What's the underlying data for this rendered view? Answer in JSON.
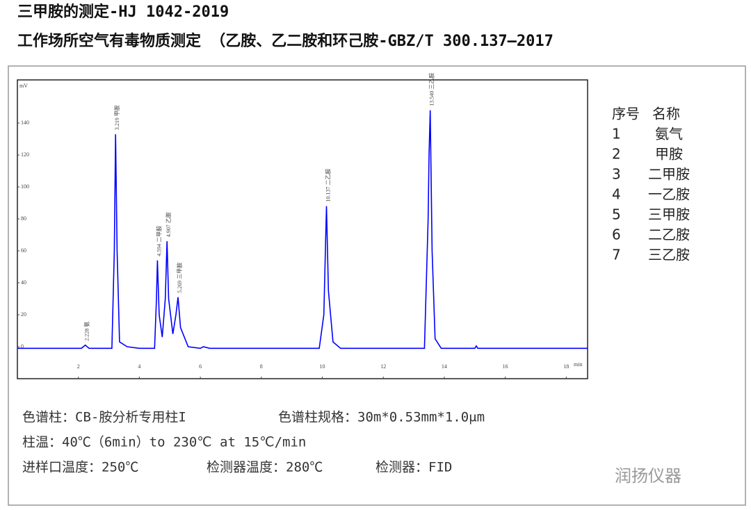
{
  "header": {
    "title": "三甲胺的测定-HJ 1042-2019",
    "subtitle": "工作场所空气有毒物质测定 （乙胺、乙二胺和环己胺-GBZ/T 300.137—2017"
  },
  "chart_data": {
    "type": "line",
    "y_unit": "mV",
    "x_unit": "min",
    "color": "#0000ff",
    "x": [
      0,
      2.1,
      2.228,
      2.35,
      3.1,
      3.18,
      3.219,
      3.27,
      3.35,
      3.6,
      4.0,
      4.5,
      4.56,
      4.594,
      4.65,
      4.75,
      4.85,
      4.907,
      4.96,
      5.1,
      5.2,
      5.269,
      5.35,
      5.6,
      6.0,
      6.1,
      6.3,
      9.9,
      10.05,
      10.137,
      10.2,
      10.35,
      10.6,
      11.1,
      13.35,
      13.47,
      13.5,
      13.54,
      13.6,
      13.7,
      13.9,
      15.0,
      15.05,
      15.1,
      18.7
    ],
    "values": [
      -1,
      -1,
      1,
      -1,
      -1,
      60,
      133,
      60,
      3,
      0,
      -1,
      -1,
      30,
      54,
      20,
      6,
      30,
      66,
      30,
      8,
      20,
      31,
      12,
      0,
      -1,
      0,
      -1,
      -1,
      20,
      88,
      35,
      3,
      -1,
      -1,
      -1,
      80,
      120,
      148,
      60,
      5,
      -1,
      -1,
      0.5,
      -1,
      -1
    ],
    "peak_labels": [
      {
        "index": 2,
        "label": "2.228 氨"
      },
      {
        "index": 6,
        "label": "3.219 甲胺"
      },
      {
        "index": 13,
        "label": "4.594 二甲胺"
      },
      {
        "index": 17,
        "label": "4.907 乙胺"
      },
      {
        "index": 21,
        "label": "5.269 三甲胺"
      },
      {
        "index": 29,
        "label": "10.137 二乙胺"
      },
      {
        "index": 37,
        "label": "13.540 三乙胺"
      }
    ],
    "xlim": [
      0,
      18.7
    ],
    "ylim": [
      -20,
      167
    ],
    "xticks": [
      2,
      4,
      6,
      8,
      10,
      12,
      14,
      16,
      18
    ],
    "yticks": [
      0,
      20,
      40,
      60,
      80,
      100,
      120,
      140
    ]
  },
  "legend": {
    "header": [
      "序号",
      "名称"
    ],
    "rows": [
      [
        "1",
        "氨气"
      ],
      [
        "2",
        "甲胺"
      ],
      [
        "3",
        "二甲胺"
      ],
      [
        "4",
        "一乙胺"
      ],
      [
        "5",
        "三甲胺"
      ],
      [
        "6",
        "二乙胺"
      ],
      [
        "7",
        "三乙胺"
      ]
    ]
  },
  "footer": {
    "column": "色谱柱：CB-胺分析专用柱I",
    "column_spec": "色谱柱规格：30m*0.53mm*1.0μm",
    "oven": "柱温：40℃（6min）to 230℃ at 15℃/min",
    "inlet": "进样口温度：250℃",
    "detector_temp": "检测器温度：280℃",
    "detector": "检测器：FID",
    "watermark": "润扬仪器"
  }
}
